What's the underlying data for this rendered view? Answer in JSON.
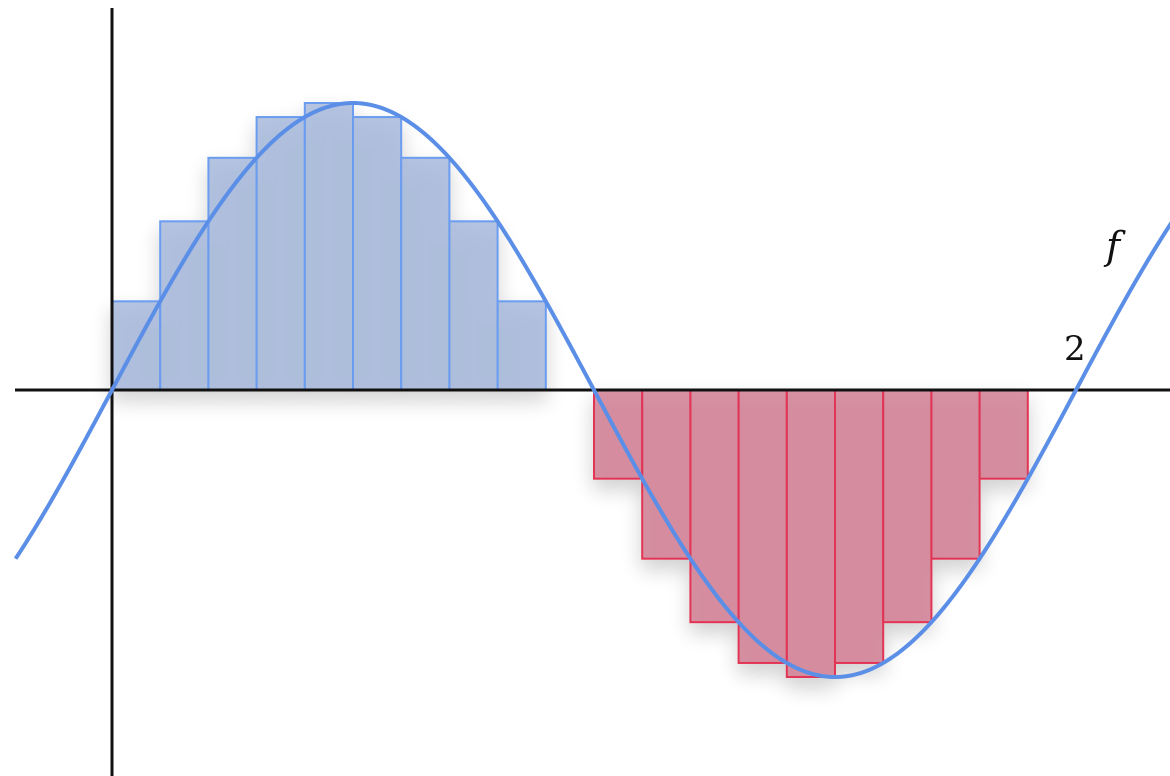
{
  "function_label": "f",
  "axis_tick_label": "2",
  "colors": {
    "curve": "#5b8ee6",
    "positive_fill": "#9fb3d8",
    "positive_stroke": "#6b9cf0",
    "negative_fill": "#d07a90",
    "negative_stroke": "#e23454",
    "axis": "#111111"
  },
  "chart_data": {
    "type": "line",
    "function": "sin(pi*x)",
    "x_range": [
      -0.2,
      2.22
    ],
    "y_range": [
      -1.36,
      1.36
    ],
    "rectangles": {
      "count": 20,
      "interval": [
        0,
        2
      ],
      "width": 0.1,
      "rule": "right-endpoint"
    },
    "annotations": [
      "f",
      "2"
    ]
  }
}
